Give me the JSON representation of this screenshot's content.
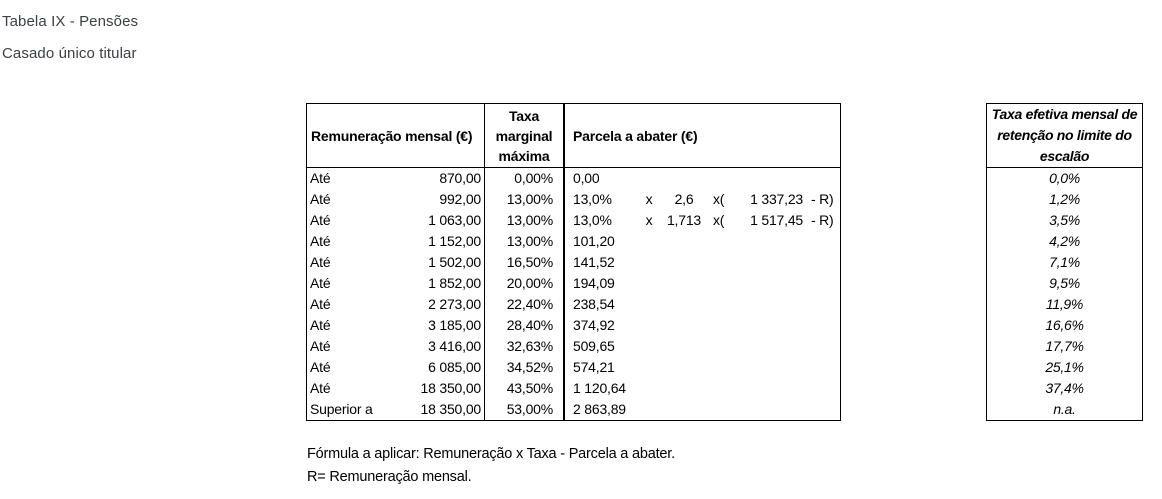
{
  "page_title": {
    "line1": "Tabela IX - Pensões",
    "line2": "Casado único titular"
  },
  "colors": {
    "background": "#ffffff",
    "title_text": "#3d4043",
    "table_text": "#000000",
    "table_border": "#000000"
  },
  "main_table": {
    "col1_header": "Remuneração mensal (€)",
    "col2_header": "Taxa marginal máxima",
    "col3_header": "Parcela a abater (€)",
    "rows": [
      {
        "prefix": "Até",
        "amount": "870,00",
        "rate": "0,00%",
        "parcela": "0,00"
      },
      {
        "prefix": "Até",
        "amount": "992,00",
        "rate": "13,00%",
        "formula": [
          "13,0%",
          "x",
          "2,6",
          "x(",
          "1 337,23",
          "- R)"
        ]
      },
      {
        "prefix": "Até",
        "amount": "1 063,00",
        "rate": "13,00%",
        "formula": [
          "13,0%",
          "x",
          "1,713",
          "x(",
          "1 517,45",
          "- R)"
        ]
      },
      {
        "prefix": "Até",
        "amount": "1 152,00",
        "rate": "13,00%",
        "parcela": "101,20"
      },
      {
        "prefix": "Até",
        "amount": "1 502,00",
        "rate": "16,50%",
        "parcela": "141,52"
      },
      {
        "prefix": "Até",
        "amount": "1 852,00",
        "rate": "20,00%",
        "parcela": "194,09"
      },
      {
        "prefix": "Até",
        "amount": "2 273,00",
        "rate": "22,40%",
        "parcela": "238,54"
      },
      {
        "prefix": "Até",
        "amount": "3 185,00",
        "rate": "28,40%",
        "parcela": "374,92"
      },
      {
        "prefix": "Até",
        "amount": "3 416,00",
        "rate": "32,63%",
        "parcela": "509,65"
      },
      {
        "prefix": "Até",
        "amount": "6 085,00",
        "rate": "34,52%",
        "parcela": "574,21"
      },
      {
        "prefix": "Até",
        "amount": "18 350,00",
        "rate": "43,50%",
        "parcela": "1 120,64"
      },
      {
        "prefix": "Superior a",
        "amount": "18 350,00",
        "rate": "53,00%",
        "parcela": "2 863,89"
      }
    ]
  },
  "effective_table": {
    "header": "Taxa efetiva mensal de retenção no limite do escalão",
    "values": [
      "0,0%",
      "1,2%",
      "3,5%",
      "4,2%",
      "7,1%",
      "9,5%",
      "11,9%",
      "16,6%",
      "17,7%",
      "25,1%",
      "37,4%",
      "n.a."
    ]
  },
  "footer": {
    "line1": "Fórmula a aplicar: Remuneração x Taxa - Parcela a abater.",
    "line2": "R= Remuneração mensal."
  }
}
